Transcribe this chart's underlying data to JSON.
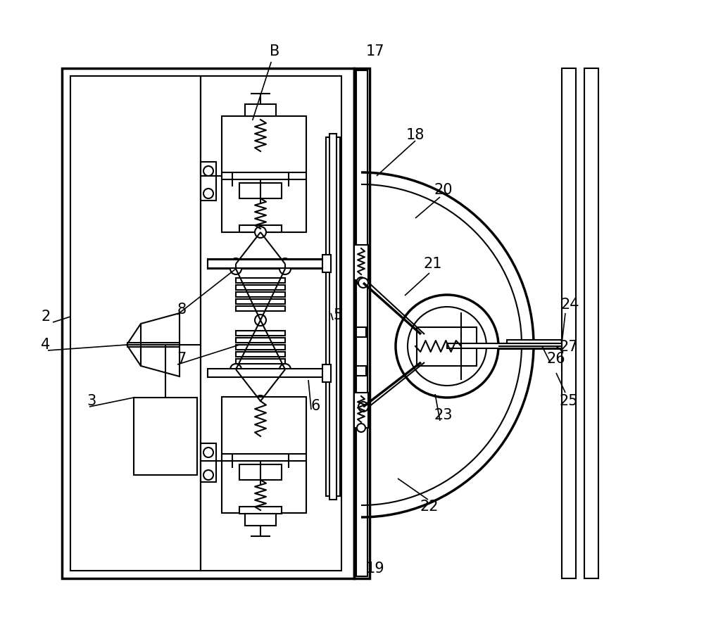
{
  "bg_color": "#ffffff",
  "line_color": "#000000",
  "lw": 1.5,
  "lw_thick": 2.5,
  "fig_width": 10.0,
  "fig_height": 9.01
}
